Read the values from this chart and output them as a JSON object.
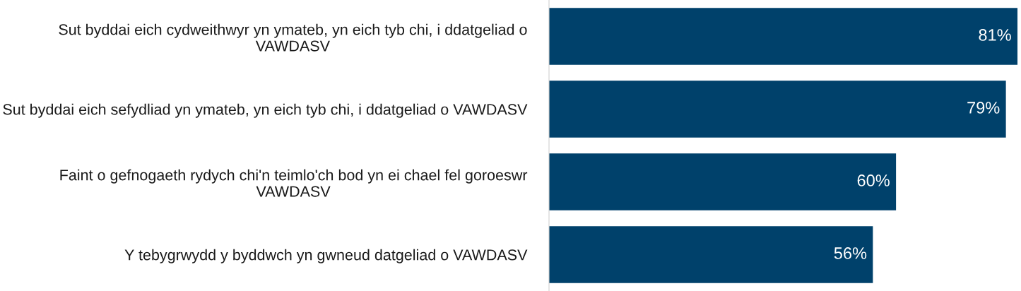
{
  "chart_data": {
    "type": "bar",
    "orientation": "horizontal",
    "categories": [
      "Sut byddai eich cydweithwyr yn ymateb, yn eich tyb chi, i ddatgeliad o VAWDASV",
      "Sut byddai eich sefydliad yn ymateb, yn eich tyb chi, i ddatgeliad o VAWDASV",
      "Faint o gefnogaeth rydych chi'n teimlo'ch bod yn ei chael fel goroeswr VAWDASV",
      "Y tebygrwydd y byddwch yn gwneud datgeliad o VAWDASV"
    ],
    "values": [
      81,
      79,
      60,
      56
    ],
    "value_labels": [
      "81%",
      "79%",
      "60%",
      "56%"
    ],
    "color": "#00416b",
    "xlim": [
      0,
      81
    ],
    "tick_labels": "y",
    "grid": false,
    "legend": false
  }
}
